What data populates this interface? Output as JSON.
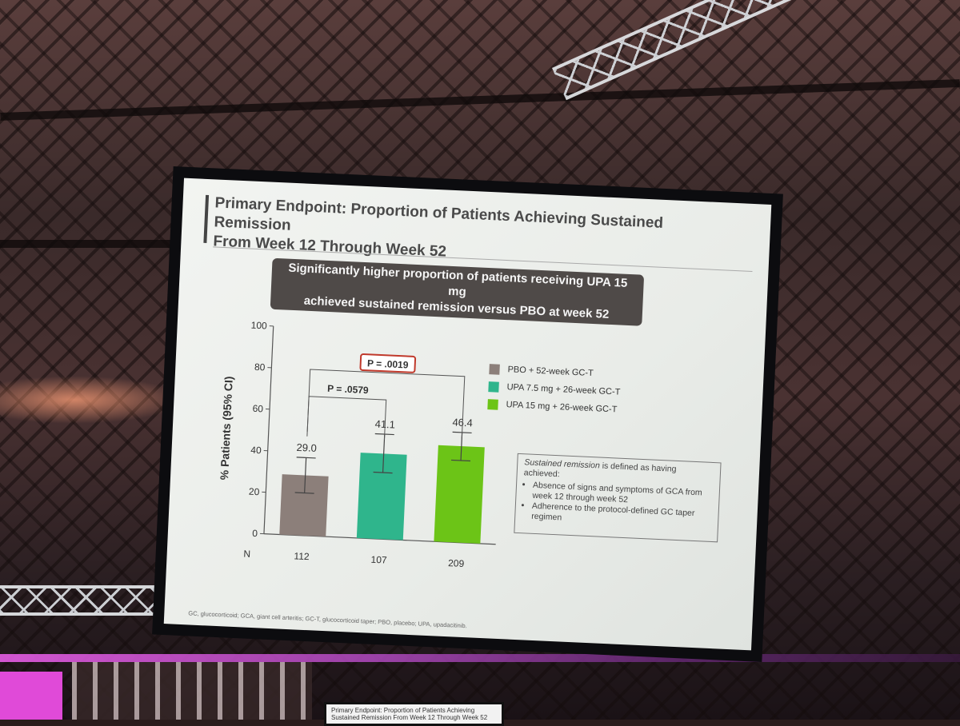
{
  "slide": {
    "title_line1": "Primary Endpoint: Proportion of Patients Achieving Sustained Remission",
    "title_line2": "From Week 12 Through Week 52",
    "banner_line1": "Significantly higher proportion of patients receiving UPA 15 mg",
    "banner_line2": "achieved sustained remission versus PBO at week 52",
    "definition": {
      "lead": "Sustained remission",
      "lead_rest": " is defined as having achieved:",
      "bullets": [
        "Absence of signs and symptoms of GCA from week 12 through week 52",
        "Adherence to the protocol-defined GC taper regimen"
      ]
    },
    "footnote": "GC, glucocorticoid; GCA, giant cell arteritis; GC-T, glucocorticoid taper; PBO, placebo; UPA, upadacitinib.",
    "monitor_text": "Primary Endpoint: Proportion of Patients Achieving Sustained Remission From Week 12 Through Week 52"
  },
  "chart_data": {
    "type": "bar",
    "ylabel": "% Patients (95% CI)",
    "ylim": [
      0,
      100
    ],
    "yticks": [
      0,
      20,
      40,
      60,
      80,
      100
    ],
    "n_label": "N",
    "series": [
      {
        "name": "PBO + 52-week GC-T",
        "value": 29.0,
        "label": "29.0",
        "ci": [
          20.5,
          37.5
        ],
        "n": "112",
        "color": "#8c7f7a"
      },
      {
        "name": "UPA 7.5 mg + 26-week GC-T",
        "value": 41.1,
        "label": "41.1",
        "ci": [
          32.0,
          50.5
        ],
        "n": "107",
        "color": "#2fb58c"
      },
      {
        "name": "UPA 15 mg + 26-week GC-T",
        "value": 46.4,
        "label": "46.4",
        "ci": [
          39.5,
          53.0
        ],
        "n": "209",
        "color": "#6cc417"
      }
    ],
    "comparisons": [
      {
        "label": "P = .0579",
        "from": 0,
        "to": 1,
        "highlight": false
      },
      {
        "label": "P = .0019",
        "from": 0,
        "to": 2,
        "highlight": true
      }
    ]
  },
  "colors": {
    "highlight_box": "#c0392b",
    "axis": "#555555",
    "banner": "#4f4a48"
  }
}
